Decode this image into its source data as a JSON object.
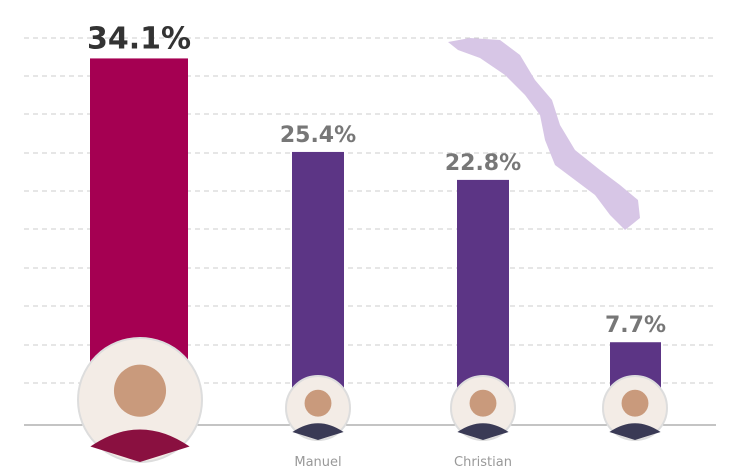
{
  "chart_data": {
    "type": "bar",
    "categories": [
      null,
      "Manuel",
      "Christian",
      null
    ],
    "values": [
      34.1,
      25.4,
      22.8,
      7.7
    ],
    "value_labels": [
      "34.1%",
      "25.4%",
      "22.8%",
      "7.7%"
    ],
    "colors": [
      "#a50052",
      "#5c3585",
      "#5c3585",
      "#5c3585"
    ],
    "ylim": [
      0,
      36
    ]
  }
}
